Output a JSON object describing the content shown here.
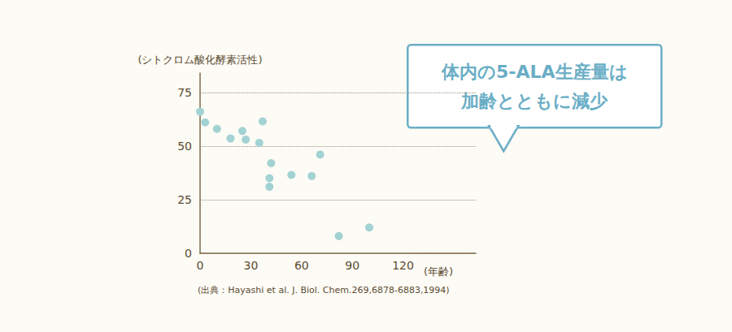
{
  "chart_data": {
    "type": "scatter",
    "y_label": "(シトクロム酸化酵素活性)",
    "x_label": "(年齢)",
    "annotation": [
      "体内の5-ALA生産量は",
      "加齢とともに減少"
    ],
    "source": "(出典：Hayashi et al. J. Biol. Chem.269,6878-6883,1994)",
    "x": [
      0,
      3,
      10,
      18,
      25,
      27,
      35,
      37,
      42,
      41,
      41,
      54,
      66,
      71,
      82,
      100
    ],
    "values": [
      66,
      61,
      58,
      53.5,
      57,
      53,
      51.5,
      61.5,
      42,
      35,
      31,
      36.5,
      36,
      46,
      8,
      12
    ],
    "color": "#a3d2d3",
    "xlim": [
      0,
      163
    ],
    "xticks": [
      0,
      30,
      60,
      90,
      120
    ],
    "ylim": [
      0,
      84
    ],
    "yticks": [
      0,
      25,
      50,
      75
    ],
    "grid": true,
    "marker": "circle"
  }
}
